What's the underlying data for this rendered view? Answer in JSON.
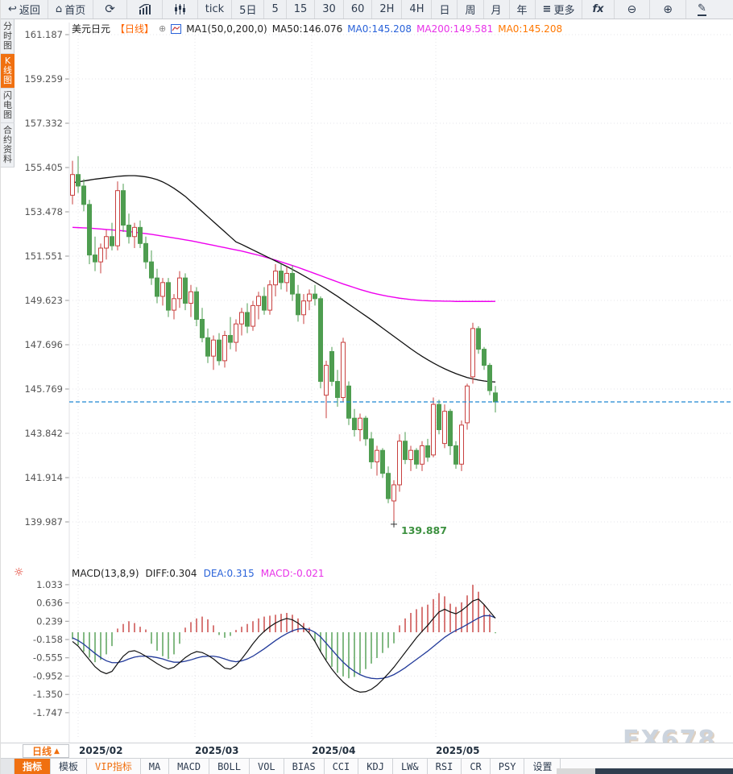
{
  "toolbar": {
    "items": [
      {
        "name": "back",
        "icon": "↩",
        "label": "返回"
      },
      {
        "name": "home",
        "icon": "⌂",
        "label": "首页"
      },
      {
        "name": "refresh",
        "icon": "⟳",
        "label": ""
      },
      {
        "name": "kline-view",
        "icon": "",
        "label": ""
      },
      {
        "name": "volume-view",
        "icon": "",
        "label": ""
      },
      {
        "name": "tick",
        "icon": "",
        "label": "tick"
      },
      {
        "name": "5d",
        "icon": "",
        "label": "5日"
      },
      {
        "name": "m5",
        "icon": "",
        "label": "5"
      },
      {
        "name": "m15",
        "icon": "",
        "label": "15"
      },
      {
        "name": "m30",
        "icon": "",
        "label": "30"
      },
      {
        "name": "m60",
        "icon": "",
        "label": "60"
      },
      {
        "name": "h2",
        "icon": "",
        "label": "2H"
      },
      {
        "name": "h4",
        "icon": "",
        "label": "4H"
      },
      {
        "name": "day",
        "icon": "",
        "label": "日"
      },
      {
        "name": "week",
        "icon": "",
        "label": "周"
      },
      {
        "name": "month",
        "icon": "",
        "label": "月"
      },
      {
        "name": "year",
        "icon": "",
        "label": "年"
      },
      {
        "name": "more",
        "icon": "≡",
        "label": "更多"
      },
      {
        "name": "fx",
        "icon": "",
        "label": "fx"
      },
      {
        "name": "zoom-out",
        "icon": "⊖",
        "label": ""
      },
      {
        "name": "zoom-in",
        "icon": "⊕",
        "label": ""
      },
      {
        "name": "draw",
        "icon": "✎",
        "label": ""
      }
    ]
  },
  "sidebar": {
    "items": [
      {
        "label": "分时图",
        "active": false
      },
      {
        "label": "K线图",
        "active": true
      },
      {
        "label": "闪电图",
        "active": false
      },
      {
        "label": "合约资料",
        "active": false
      }
    ]
  },
  "header": {
    "symbol": "美元日元",
    "period": "【日线】",
    "expand_icon": "⊕",
    "formula": "MA1(50,0,200,0)",
    "ma50": "MA50:146.076",
    "ma0_blue": "MA0:145.208",
    "ma200": "MA200:149.581",
    "ma0_orange": "MA0:145.208"
  },
  "xaxis": {
    "period_label": "日线",
    "period_arrow": "▲",
    "labels": [
      "2025/02",
      "2025/03",
      "2025/04",
      "2025/05"
    ]
  },
  "bottom_tabs": {
    "items": [
      {
        "label": "指标"
      },
      {
        "label": "模板"
      },
      {
        "label": "VIP指标"
      },
      {
        "label": "MA"
      },
      {
        "label": "MACD"
      },
      {
        "label": "BOLL"
      },
      {
        "label": "VOL"
      },
      {
        "label": "BIAS"
      },
      {
        "label": "CCI"
      },
      {
        "label": "KDJ"
      },
      {
        "label": "LW&"
      },
      {
        "label": "RSI"
      },
      {
        "label": "CR"
      },
      {
        "label": "PSY"
      },
      {
        "label": "设置"
      }
    ]
  },
  "watermark": "FX678",
  "chart_data": [
    {
      "type": "candlestick",
      "symbol": "美元日元",
      "period": "日线",
      "y_ticks": [
        161.187,
        159.259,
        157.332,
        155.405,
        153.478,
        151.551,
        149.623,
        147.696,
        145.769,
        143.842,
        141.914,
        139.987
      ],
      "x_tick_labels": [
        "2025/02",
        "2025/03",
        "2025/04",
        "2025/05"
      ],
      "month_grid_x": [
        96,
        241,
        386,
        540
      ],
      "current_price": 145.208,
      "low_annotation": "139.887",
      "low_value": 139.887,
      "colors": {
        "up": "#c8403f",
        "down": "#4e9d50",
        "ma50": "#111111",
        "ma200": "#ee00ee",
        "price_line": "#1e88d2",
        "low_text": "#3d9140",
        "grid": "#e4e4e8",
        "axis_text": "#555555"
      },
      "candles": [
        [
          154.2,
          155.7,
          153.8,
          155.1
        ],
        [
          155.1,
          155.9,
          154.3,
          154.6
        ],
        [
          154.6,
          154.9,
          153.5,
          153.8
        ],
        [
          153.8,
          154.0,
          151.2,
          151.6
        ],
        [
          151.6,
          152.4,
          150.9,
          151.3
        ],
        [
          151.3,
          152.1,
          150.8,
          151.9
        ],
        [
          151.9,
          152.7,
          151.4,
          152.4
        ],
        [
          152.4,
          153.0,
          151.8,
          152.0
        ],
        [
          152.0,
          154.8,
          151.8,
          154.4
        ],
        [
          154.4,
          154.7,
          152.6,
          152.9
        ],
        [
          152.9,
          153.4,
          152.1,
          152.4
        ],
        [
          152.4,
          153.0,
          151.9,
          152.8
        ],
        [
          152.8,
          153.1,
          151.9,
          152.1
        ],
        [
          152.1,
          152.4,
          151.0,
          151.3
        ],
        [
          151.3,
          151.8,
          150.3,
          150.6
        ],
        [
          150.6,
          151.0,
          149.5,
          149.8
        ],
        [
          149.8,
          150.6,
          149.4,
          150.4
        ],
        [
          150.4,
          150.6,
          148.9,
          149.2
        ],
        [
          149.2,
          149.9,
          148.8,
          149.7
        ],
        [
          149.7,
          150.9,
          149.3,
          150.6
        ],
        [
          150.6,
          150.8,
          149.2,
          149.5
        ],
        [
          149.5,
          150.3,
          148.9,
          150.0
        ],
        [
          150.0,
          150.2,
          148.5,
          148.8
        ],
        [
          148.8,
          149.3,
          147.8,
          148.0
        ],
        [
          148.0,
          148.4,
          146.9,
          147.2
        ],
        [
          147.2,
          148.1,
          146.6,
          147.9
        ],
        [
          147.9,
          148.2,
          146.8,
          147.0
        ],
        [
          147.0,
          148.3,
          146.7,
          148.1
        ],
        [
          148.1,
          148.9,
          147.5,
          147.8
        ],
        [
          147.8,
          148.8,
          147.4,
          148.6
        ],
        [
          148.6,
          149.3,
          148.1,
          149.1
        ],
        [
          149.1,
          149.5,
          148.2,
          148.5
        ],
        [
          148.5,
          149.6,
          148.3,
          149.4
        ],
        [
          149.4,
          150.0,
          148.8,
          149.8
        ],
        [
          149.8,
          150.2,
          149.0,
          149.2
        ],
        [
          149.2,
          150.5,
          149.0,
          150.3
        ],
        [
          150.3,
          151.2,
          149.8,
          150.9
        ],
        [
          150.9,
          151.2,
          150.1,
          150.4
        ],
        [
          150.4,
          151.1,
          150.0,
          150.8
        ],
        [
          150.8,
          151.15,
          149.6,
          149.9
        ],
        [
          149.9,
          150.3,
          148.7,
          149.0
        ],
        [
          149.0,
          149.9,
          148.6,
          149.6
        ],
        [
          149.6,
          150.1,
          149.2,
          149.9
        ],
        [
          149.9,
          150.3,
          149.4,
          149.7
        ],
        [
          149.7,
          149.8,
          145.8,
          146.1
        ],
        [
          145.5,
          147.0,
          144.5,
          146.8
        ],
        [
          147.4,
          147.6,
          145.9,
          146.1
        ],
        [
          146.1,
          146.6,
          145.0,
          145.4
        ],
        [
          145.4,
          148.0,
          145.2,
          147.8
        ],
        [
          145.9,
          146.1,
          144.2,
          144.5
        ],
        [
          144.5,
          144.9,
          143.7,
          144.0
        ],
        [
          144.0,
          144.7,
          143.5,
          144.5
        ],
        [
          144.5,
          144.6,
          143.3,
          143.6
        ],
        [
          143.6,
          143.9,
          142.3,
          142.6
        ],
        [
          142.6,
          143.3,
          142.0,
          143.1
        ],
        [
          143.1,
          143.2,
          141.9,
          142.1
        ],
        [
          142.1,
          142.4,
          140.8,
          141.0
        ],
        [
          140.9,
          141.8,
          139.887,
          141.6
        ],
        [
          141.6,
          143.8,
          141.3,
          143.5
        ],
        [
          143.5,
          143.9,
          142.5,
          142.7
        ],
        [
          142.7,
          143.3,
          142.2,
          143.1
        ],
        [
          143.1,
          143.2,
          142.3,
          142.5
        ],
        [
          142.5,
          143.5,
          142.2,
          143.3
        ],
        [
          143.3,
          143.6,
          142.6,
          142.8
        ],
        [
          142.9,
          145.4,
          142.8,
          145.1
        ],
        [
          145.1,
          145.3,
          143.8,
          144.0
        ],
        [
          143.4,
          145.1,
          143.2,
          144.8
        ],
        [
          144.8,
          144.9,
          142.9,
          143.3
        ],
        [
          143.3,
          143.5,
          142.3,
          142.5
        ],
        [
          142.5,
          144.4,
          142.2,
          144.2
        ],
        [
          144.3,
          146.0,
          144.0,
          145.9
        ],
        [
          146.3,
          148.65,
          146.0,
          148.4
        ],
        [
          148.4,
          148.5,
          147.3,
          147.5
        ],
        [
          147.5,
          147.6,
          146.6,
          146.8
        ],
        [
          146.8,
          146.9,
          145.5,
          145.7
        ],
        [
          145.6,
          145.9,
          144.75,
          145.208
        ]
      ],
      "ma50": [
        154.75,
        154.78,
        154.82,
        154.86,
        154.9,
        154.93,
        154.96,
        154.99,
        155.02,
        155.04,
        155.05,
        155.05,
        155.03,
        155.0,
        154.95,
        154.88,
        154.78,
        154.65,
        154.5,
        154.33,
        154.15,
        153.93,
        153.71,
        153.49,
        153.27,
        153.05,
        152.83,
        152.61,
        152.39,
        152.17,
        152.06,
        151.94,
        151.82,
        151.7,
        151.58,
        151.46,
        151.34,
        151.22,
        151.1,
        150.97,
        150.84,
        150.7,
        150.56,
        150.42,
        150.27,
        150.12,
        149.96,
        149.8,
        149.63,
        149.46,
        149.29,
        149.12,
        148.95,
        148.78,
        148.6,
        148.42,
        148.24,
        148.06,
        147.88,
        147.7,
        147.52,
        147.35,
        147.19,
        147.04,
        146.9,
        146.77,
        146.65,
        146.54,
        146.44,
        146.35,
        146.27,
        146.21,
        146.16,
        146.12,
        146.09,
        146.076
      ],
      "ma200": [
        152.8,
        152.79,
        152.78,
        152.77,
        152.75,
        152.73,
        152.71,
        152.69,
        152.67,
        152.65,
        152.62,
        152.59,
        152.56,
        152.53,
        152.5,
        152.46,
        152.42,
        152.38,
        152.34,
        152.3,
        152.26,
        152.22,
        152.17,
        152.12,
        152.07,
        152.02,
        151.97,
        151.92,
        151.87,
        151.82,
        151.77,
        151.71,
        151.65,
        151.59,
        151.52,
        151.45,
        151.38,
        151.3,
        151.22,
        151.14,
        151.06,
        150.97,
        150.88,
        150.79,
        150.7,
        150.61,
        150.52,
        150.43,
        150.34,
        150.26,
        150.18,
        150.1,
        150.03,
        149.96,
        149.9,
        149.85,
        149.8,
        149.76,
        149.72,
        149.69,
        149.66,
        149.64,
        149.62,
        149.61,
        149.6,
        149.6,
        149.59,
        149.59,
        149.58,
        149.58,
        149.58,
        149.58,
        149.58,
        149.58,
        149.58,
        149.581
      ]
    },
    {
      "type": "macd",
      "params": "MACD(13,8,9)",
      "diff_label": "DIFF:0.304",
      "dea_label": "DEA:0.315",
      "macd_label": "MACD:-0.021",
      "y_ticks": [
        1.033,
        0.636,
        0.239,
        -0.158,
        -0.555,
        -0.952,
        -1.35,
        -1.747
      ],
      "colors": {
        "pos": "#c8403f",
        "neg": "#4e9d50",
        "diff": "#111111",
        "dea": "#223a9a"
      },
      "hist": [
        -0.15,
        -0.28,
        -0.42,
        -0.55,
        -0.65,
        -0.6,
        -0.48,
        -0.3,
        0.08,
        0.18,
        0.24,
        0.2,
        0.12,
        0.06,
        -0.25,
        -0.4,
        -0.52,
        -0.58,
        -0.48,
        -0.25,
        0.1,
        0.22,
        0.3,
        0.34,
        0.28,
        0.15,
        -0.06,
        -0.12,
        -0.08,
        0.05,
        0.12,
        0.18,
        0.24,
        0.3,
        0.34,
        0.36,
        0.38,
        0.4,
        0.42,
        0.38,
        0.3,
        0.2,
        0.1,
        -0.2,
        -0.42,
        -0.6,
        -0.75,
        -0.88,
        -0.96,
        -1.0,
        -0.97,
        -0.9,
        -0.8,
        -0.68,
        -0.56,
        -0.45,
        -0.34,
        -0.24,
        0.15,
        0.3,
        0.42,
        0.5,
        0.55,
        0.6,
        0.72,
        0.85,
        0.78,
        0.62,
        0.55,
        0.65,
        0.8,
        1.03,
        0.88,
        0.6,
        0.4,
        -0.021
      ],
      "diff": [
        -0.2,
        -0.3,
        -0.45,
        -0.6,
        -0.75,
        -0.85,
        -0.9,
        -0.85,
        -0.68,
        -0.52,
        -0.42,
        -0.4,
        -0.45,
        -0.52,
        -0.6,
        -0.68,
        -0.75,
        -0.8,
        -0.76,
        -0.66,
        -0.55,
        -0.47,
        -0.42,
        -0.44,
        -0.5,
        -0.58,
        -0.68,
        -0.78,
        -0.8,
        -0.72,
        -0.58,
        -0.42,
        -0.25,
        -0.1,
        0.02,
        0.12,
        0.2,
        0.26,
        0.3,
        0.27,
        0.2,
        0.1,
        -0.02,
        -0.2,
        -0.42,
        -0.62,
        -0.8,
        -0.95,
        -1.08,
        -1.18,
        -1.26,
        -1.3,
        -1.29,
        -1.24,
        -1.15,
        -1.03,
        -0.9,
        -0.76,
        -0.6,
        -0.44,
        -0.28,
        -0.12,
        0.02,
        0.15,
        0.3,
        0.44,
        0.5,
        0.44,
        0.4,
        0.47,
        0.57,
        0.68,
        0.72,
        0.6,
        0.45,
        0.304
      ],
      "dea": [
        -0.12,
        -0.18,
        -0.26,
        -0.36,
        -0.46,
        -0.55,
        -0.62,
        -0.66,
        -0.66,
        -0.63,
        -0.58,
        -0.54,
        -0.52,
        -0.52,
        -0.53,
        -0.55,
        -0.58,
        -0.62,
        -0.65,
        -0.65,
        -0.63,
        -0.6,
        -0.56,
        -0.53,
        -0.52,
        -0.52,
        -0.54,
        -0.58,
        -0.62,
        -0.64,
        -0.62,
        -0.58,
        -0.52,
        -0.44,
        -0.36,
        -0.27,
        -0.18,
        -0.1,
        -0.03,
        0.03,
        0.07,
        0.08,
        0.06,
        0.0,
        -0.1,
        -0.24,
        -0.38,
        -0.52,
        -0.65,
        -0.76,
        -0.85,
        -0.92,
        -0.97,
        -1.0,
        -1.01,
        -1.0,
        -0.97,
        -0.92,
        -0.85,
        -0.77,
        -0.68,
        -0.59,
        -0.5,
        -0.41,
        -0.31,
        -0.21,
        -0.11,
        -0.03,
        0.04,
        0.1,
        0.17,
        0.24,
        0.31,
        0.36,
        0.36,
        0.315
      ]
    }
  ]
}
